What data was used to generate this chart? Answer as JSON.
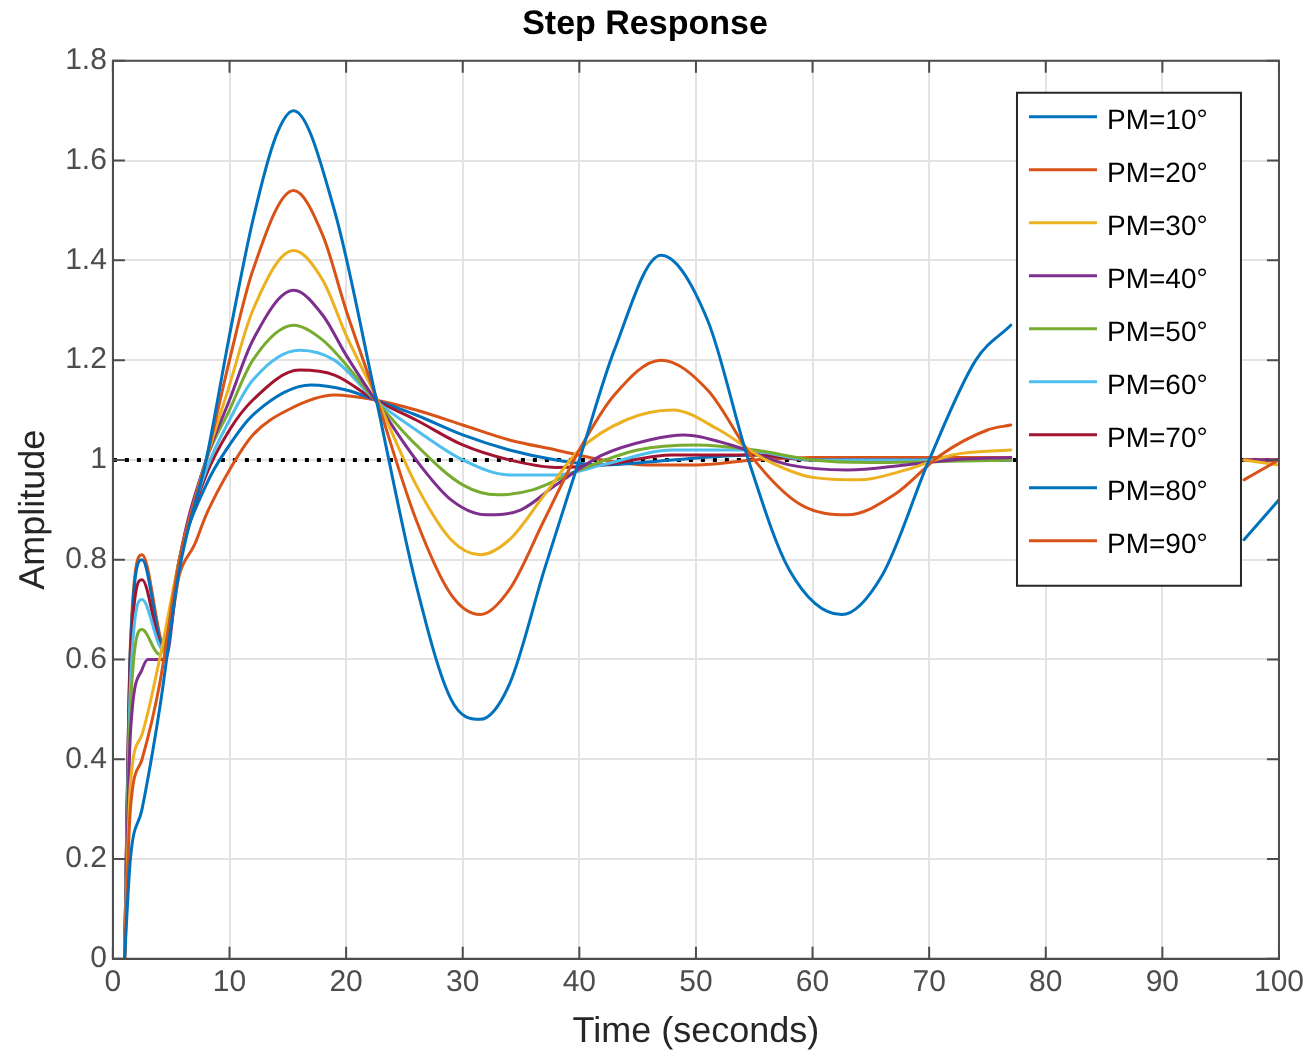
{
  "chart_data": {
    "type": "line",
    "title": "Step Response",
    "xlabel": "Time (seconds)",
    "ylabel": "Amplitude",
    "xlim": [
      0,
      100
    ],
    "xticks": [
      0,
      10,
      20,
      30,
      40,
      50,
      60,
      70,
      80,
      90,
      100
    ],
    "ylim": [
      0,
      1.8
    ],
    "yticks": [
      0,
      0.2,
      0.4,
      0.6,
      0.8,
      1,
      1.2,
      1.4,
      1.6,
      1.8
    ],
    "grid": true,
    "legend": "top right",
    "marker": "none",
    "line_style": "solid",
    "ref_lines": [
      {
        "axis": "y",
        "value": 1,
        "color": "#000000",
        "line_style": "dotted"
      }
    ],
    "series": [
      {
        "name": "PM=10°",
        "color": "#0072bd",
        "x": [
          1,
          1.5,
          2.5,
          4,
          5.7,
          8,
          10,
          12,
          14,
          15.5,
          19,
          22.5,
          26,
          29,
          31.5,
          34,
          37,
          40,
          43,
          47,
          51,
          54.5,
          58,
          62.5,
          66,
          70,
          74,
          77,
          87,
          97,
          100
        ],
        "values": [
          0,
          0.2,
          0.3,
          0.5,
          0.78,
          1.0,
          1.25,
          1.48,
          1.65,
          1.7,
          1.5,
          1.13,
          0.75,
          0.52,
          0.48,
          0.55,
          0.78,
          1.0,
          1.22,
          1.41,
          1.28,
          1.0,
          0.78,
          0.69,
          0.77,
          1.0,
          1.2,
          1.27,
          null,
          0.84,
          0.92
        ]
      },
      {
        "name": "PM=20°",
        "color": "#d95319",
        "x": [
          1,
          1.5,
          2.5,
          4,
          5.7,
          8,
          10,
          12,
          15.5,
          18,
          20,
          22.5,
          26,
          29,
          31.5,
          34,
          37,
          40,
          43,
          47,
          51,
          55,
          59,
          63,
          67,
          71,
          75,
          77,
          87,
          97,
          100
        ],
        "values": [
          0,
          0.3,
          0.4,
          0.55,
          0.8,
          1.0,
          1.2,
          1.38,
          1.54,
          1.45,
          1.3,
          1.13,
          0.88,
          0.73,
          0.69,
          0.74,
          0.88,
          1.02,
          1.13,
          1.2,
          1.14,
          1.0,
          0.91,
          0.89,
          0.93,
          1.01,
          1.06,
          1.07,
          null,
          0.96,
          1.0
        ]
      },
      {
        "name": "PM=30°",
        "color": "#edb120",
        "x": [
          1,
          1.5,
          2.5,
          4,
          5.7,
          8,
          10,
          12,
          15.5,
          18,
          20,
          22.5,
          26,
          29,
          31.5,
          34,
          37,
          40,
          44,
          48,
          52,
          56,
          60,
          64,
          68,
          72,
          77,
          87,
          97,
          100
        ],
        "values": [
          0,
          0.35,
          0.45,
          0.6,
          0.8,
          1.0,
          1.15,
          1.3,
          1.42,
          1.36,
          1.25,
          1.13,
          0.95,
          0.84,
          0.81,
          0.84,
          0.93,
          1.02,
          1.08,
          1.1,
          1.06,
          1.0,
          0.965,
          0.96,
          0.98,
          1.01,
          1.02,
          null,
          1.0,
          0.99
        ]
      },
      {
        "name": "PM=40°",
        "color": "#7e2f8e",
        "x": [
          1,
          1.5,
          2.5,
          3,
          4.5,
          5.7,
          8,
          10,
          12,
          15.5,
          18,
          20,
          22.5,
          26,
          29,
          32,
          35,
          38,
          42,
          46,
          49,
          53,
          58,
          63,
          68,
          72,
          77,
          87,
          97,
          100
        ],
        "values": [
          0,
          0.45,
          0.58,
          0.6,
          0.6,
          0.8,
          1.0,
          1.12,
          1.24,
          1.34,
          1.29,
          1.21,
          1.12,
          1.0,
          0.92,
          0.89,
          0.9,
          0.95,
          1.01,
          1.04,
          1.05,
          1.03,
          0.99,
          0.98,
          0.99,
          1.0,
          1.005,
          null,
          1.0,
          1.0
        ]
      },
      {
        "name": "PM=50°",
        "color": "#77ac30",
        "x": [
          1,
          1.5,
          2.5,
          4,
          5.7,
          8,
          10,
          12,
          15.5,
          18,
          22.5,
          26,
          30,
          33,
          36,
          40,
          45,
          50,
          55,
          60,
          65,
          77
        ],
        "values": [
          0,
          0.5,
          0.66,
          0.61,
          0.8,
          1.0,
          1.1,
          1.2,
          1.27,
          1.24,
          1.12,
          1.03,
          0.95,
          0.93,
          0.94,
          0.98,
          1.02,
          1.03,
          1.02,
          1.0,
          0.995,
          1.0
        ]
      },
      {
        "name": "PM=60°",
        "color": "#4dbeee",
        "x": [
          1,
          1.5,
          2.5,
          4.3,
          5.7,
          8,
          10,
          12,
          16,
          19,
          22.5,
          26,
          30,
          34,
          38,
          42,
          48,
          54,
          60,
          77
        ],
        "values": [
          0,
          0.55,
          0.72,
          0.62,
          0.8,
          0.98,
          1.08,
          1.16,
          1.22,
          1.2,
          1.12,
          1.06,
          1.0,
          0.97,
          0.97,
          0.99,
          1.02,
          1.02,
          1.0,
          1.0
        ]
      },
      {
        "name": "PM=70°",
        "color": "#a2142f",
        "x": [
          1,
          1.5,
          2.5,
          4.3,
          5.7,
          8,
          10,
          12,
          16,
          19,
          22.5,
          26,
          30,
          34,
          38,
          42,
          48,
          55,
          60,
          77,
          87,
          97,
          100
        ],
        "values": [
          0,
          0.6,
          0.76,
          0.62,
          0.8,
          0.97,
          1.06,
          1.12,
          1.18,
          1.17,
          1.12,
          1.08,
          1.03,
          1.0,
          0.985,
          0.99,
          1.01,
          1.01,
          1.0,
          1.0,
          null,
          1.0,
          1.0
        ]
      },
      {
        "name": "PM=80°",
        "color": "#0072bd",
        "x": [
          1,
          1.5,
          2.5,
          4.4,
          5.7,
          8,
          10,
          12,
          17,
          20,
          22.5,
          26,
          30,
          34,
          38,
          42,
          48,
          55,
          60,
          77
        ],
        "values": [
          0,
          0.62,
          0.8,
          0.62,
          0.8,
          0.95,
          1.03,
          1.09,
          1.15,
          1.14,
          1.12,
          1.09,
          1.05,
          1.02,
          1.0,
          0.99,
          1.0,
          1.01,
          1.0,
          1.0
        ]
      },
      {
        "name": "PM=90°",
        "color": "#d95319",
        "x": [
          1,
          1.5,
          2.5,
          4.5,
          5.7,
          7,
          8,
          10,
          12,
          15,
          19,
          22.5,
          26,
          30,
          34,
          38,
          42,
          46,
          50,
          55,
          60,
          77,
          87,
          97,
          100
        ],
        "values": [
          0,
          0.63,
          0.81,
          0.62,
          0.77,
          0.83,
          0.89,
          0.98,
          1.05,
          1.1,
          1.13,
          1.12,
          1.1,
          1.07,
          1.04,
          1.02,
          1.0,
          0.99,
          0.99,
          1.0,
          1.005,
          1.005,
          null,
          1.0,
          1.0
        ]
      }
    ]
  }
}
